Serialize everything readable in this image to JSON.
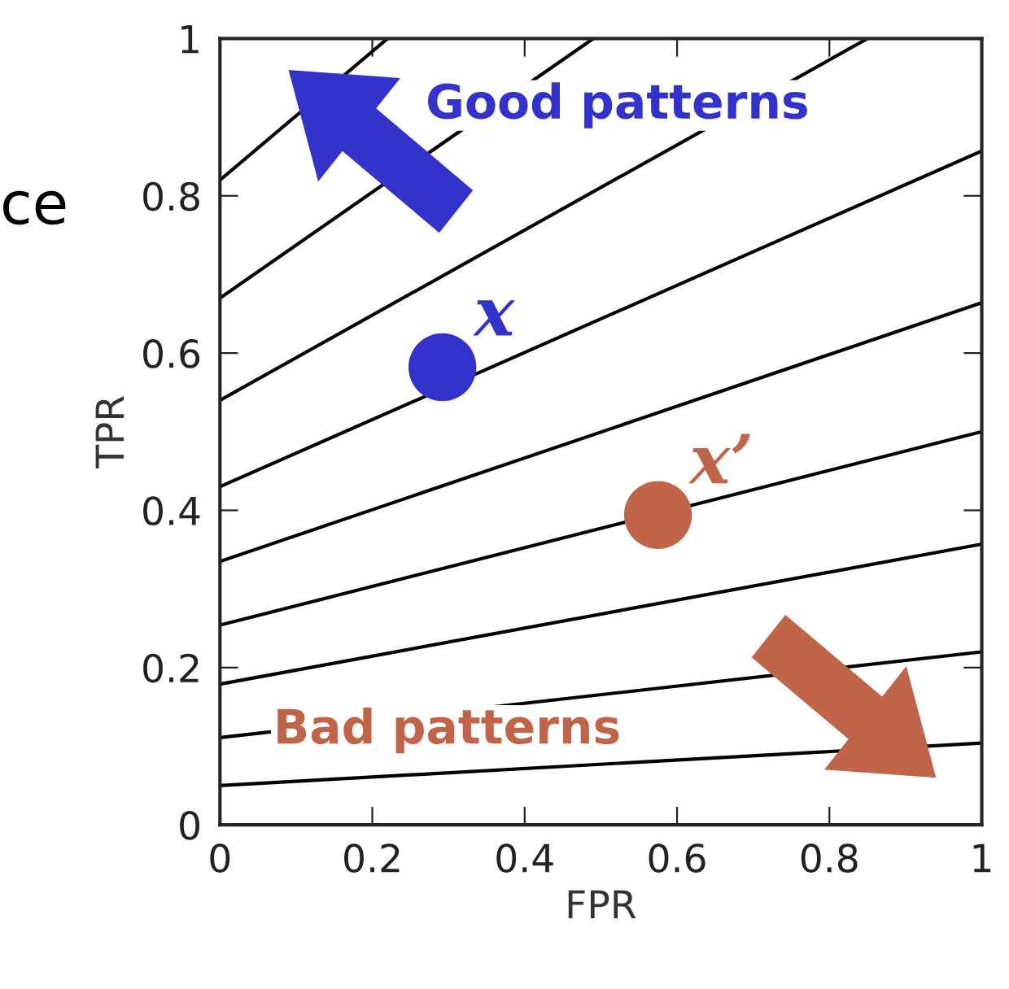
{
  "chart_data": {
    "type": "line",
    "xlabel": "FPR",
    "ylabel": "TPR",
    "xlim": [
      0,
      1
    ],
    "ylim": [
      0,
      1
    ],
    "xticks": [
      0,
      0.2,
      0.4,
      0.6,
      0.8,
      1
    ],
    "yticks": [
      0,
      0.2,
      0.4,
      0.6,
      0.8,
      1
    ],
    "grid": false,
    "legend": false,
    "marker": "none",
    "line_style": "solid",
    "annotations": [
      "Good patterns",
      "Bad patterns",
      "ce"
    ],
    "series": [
      {
        "color": "#000000",
        "x": [
          0,
          1
        ],
        "values": [
          0.05,
          0.104
        ]
      },
      {
        "color": "#000000",
        "x": [
          0,
          1
        ],
        "values": [
          0.111,
          0.22
        ]
      },
      {
        "color": "#000000",
        "x": [
          0,
          1
        ],
        "values": [
          0.179,
          0.357
        ]
      },
      {
        "color": "#000000",
        "x": [
          0,
          1
        ],
        "values": [
          0.254,
          0.5
        ]
      },
      {
        "color": "#000000",
        "x": [
          0,
          1
        ],
        "values": [
          0.335,
          0.664
        ]
      },
      {
        "color": "#000000",
        "x": [
          0,
          1
        ],
        "values": [
          0.43,
          0.857
        ]
      },
      {
        "color": "#000000",
        "x": [
          0,
          0.85
        ],
        "values": [
          0.54,
          1
        ]
      },
      {
        "color": "#000000",
        "x": [
          0,
          0.49
        ],
        "values": [
          0.67,
          1
        ]
      },
      {
        "color": "#000000",
        "x": [
          0,
          0.22
        ],
        "values": [
          0.82,
          1
        ]
      },
      {
        "type": "scatter",
        "marker": "circle",
        "name": "x",
        "color": "#3333cc",
        "x": [
          0.292
        ],
        "values": [
          0.582
        ]
      },
      {
        "type": "scatter",
        "marker": "circle",
        "name": "x’",
        "color": "#c0654a",
        "x": [
          0.575
        ],
        "values": [
          0.394
        ]
      }
    ]
  }
}
